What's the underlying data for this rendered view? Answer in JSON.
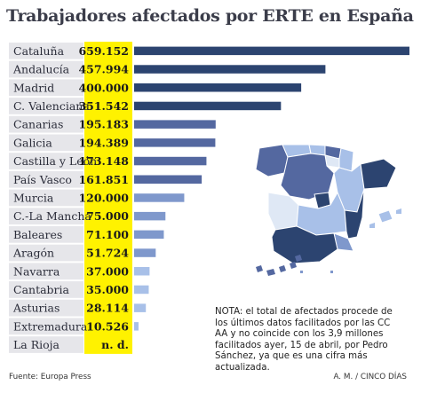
{
  "header": {
    "title": "Trabajadores afectados por ERTE en España"
  },
  "chart_data": {
    "type": "bar",
    "orientation": "horizontal",
    "title": "Trabajadores afectados por ERTE en España",
    "categories": [
      "Cataluña",
      "Andalucía",
      "Madrid",
      "C. Valenciana",
      "Canarias",
      "Galicia",
      "Castilla y León",
      "País Vasco",
      "Murcia",
      "C.-La Mancha",
      "Baleares",
      "Aragón",
      "Navarra",
      "Cantabria",
      "Asturias",
      "Extremadura",
      "La Rioja"
    ],
    "values": [
      659152,
      457994,
      400000,
      351542,
      195183,
      194389,
      173148,
      161851,
      120000,
      75000,
      71100,
      51724,
      37000,
      35000,
      28114,
      10526,
      null
    ],
    "value_labels": [
      "659.152",
      "457.994",
      "400.000",
      "351.542",
      "195.183",
      "194.389",
      "173.148",
      "161.851",
      "120.000",
      "75.000",
      "71.100",
      "51.724",
      "37.000",
      "35.000",
      "28.114",
      "10.526",
      "n. d."
    ],
    "xlim": [
      0,
      659152
    ],
    "grid": false,
    "colors": {
      "value_column": "#fff200",
      "row_background": "#e6e6ea",
      "bars_high": "#2c4470",
      "bars_mid": "#5468a0",
      "bars_low": "#7f98cc",
      "bars_lowest": "#a8c0e8"
    }
  },
  "note": "NOTA: el total de afectados procede de los últimos datos facilitados por las CC AA y no coincide con los 3,9 millones facilitados ayer, 15 de abril, por Pedro Sánchez, ya que es una cifra  más actualizada.",
  "footer": {
    "source": "Fuente: Europa Press",
    "credit": "A. M. / CINCO DÍAS"
  },
  "map": {
    "icon": "spain-regions-map-icon"
  }
}
